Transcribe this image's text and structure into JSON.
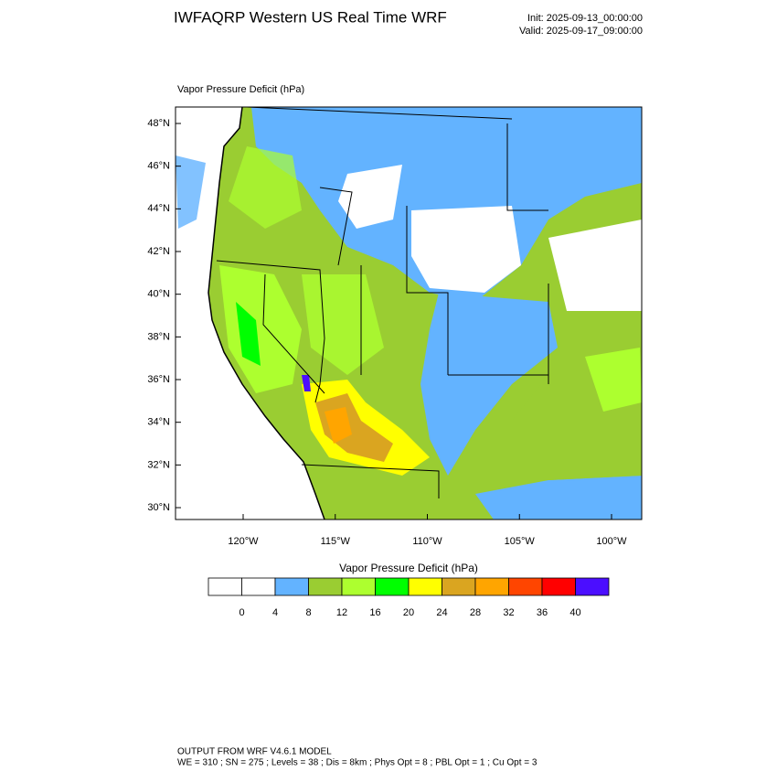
{
  "header": {
    "title": "IWFAQRP Western US Real Time WRF",
    "init": "Init: 2025-09-13_00:00:00",
    "valid": "Valid: 2025-09-17_09:00:00"
  },
  "map": {
    "label": "Vapor Pressure Deficit   (hPa)",
    "lat_ticks": [
      "48°N",
      "46°N",
      "44°N",
      "42°N",
      "40°N",
      "38°N",
      "36°N",
      "34°N",
      "32°N",
      "30°N"
    ],
    "lon_ticks": [
      "120°W",
      "115°W",
      "110°W",
      "105°W",
      "100°W"
    ]
  },
  "colorbar": {
    "title": "Vapor Pressure Deficit  (hPa)",
    "levels": [
      0,
      4,
      8,
      12,
      16,
      20,
      24,
      28,
      32,
      36,
      40
    ],
    "colors": [
      "#ffffff",
      "#ffffff",
      "#63b3ff",
      "#9acd32",
      "#adff2f",
      "#00ff00",
      "#ffff00",
      "#daa520",
      "#ffa500",
      "#ff4500",
      "#ff0000",
      "#4b0eff"
    ]
  },
  "footer": {
    "line1": "OUTPUT FROM WRF V4.6.1 MODEL",
    "line2": "WE = 310 ; SN = 275 ; Levels = 38 ; Dis = 8km ; Phys Opt = 8 ; PBL Opt = 1 ; Cu Opt = 3"
  }
}
